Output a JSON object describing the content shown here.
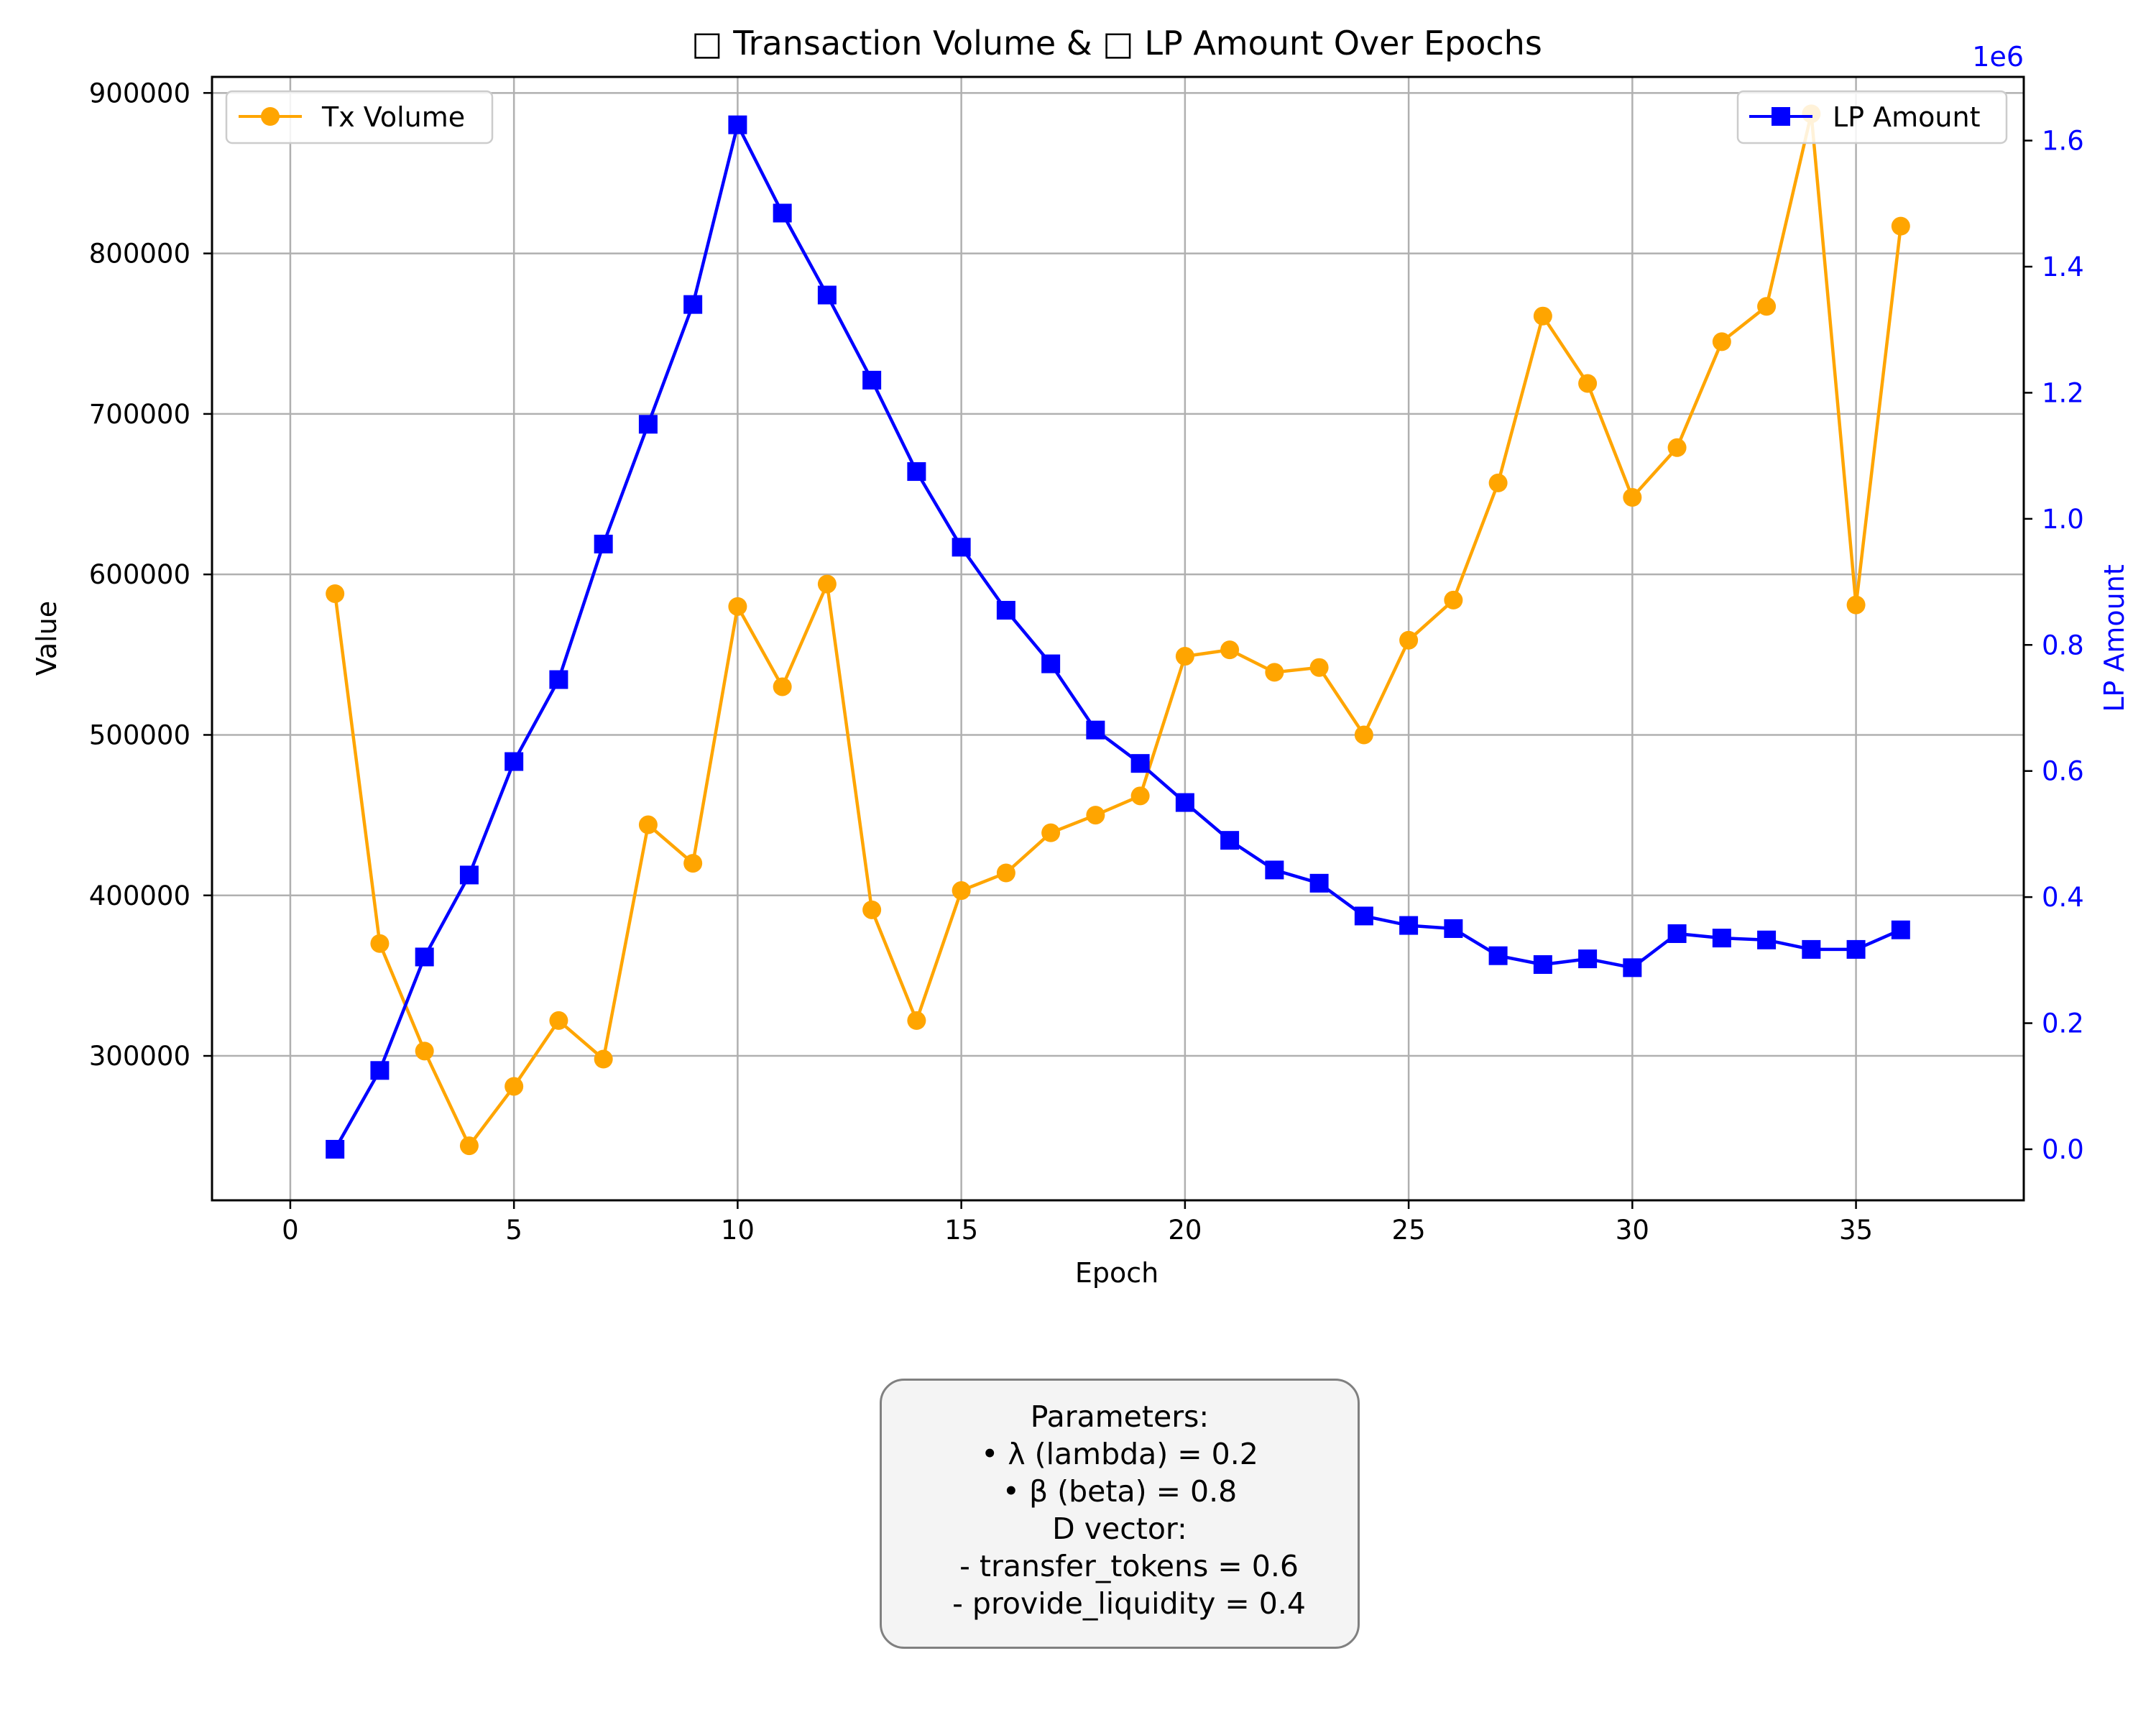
{
  "chart_data": {
    "type": "line",
    "title": "□ Transaction Volume & □ LP Amount Over Epochs",
    "xlabel": "Epoch",
    "ylabel_left": "Value",
    "ylabel_right": "LP Amount",
    "right_axis_offset_label": "1e6",
    "xlim": [
      -1.75,
      38.75
    ],
    "ylim_left": [
      210000,
      910000
    ],
    "ylim_right": [
      -0.081,
      1.701
    ],
    "x_ticks": [
      0,
      5,
      10,
      15,
      20,
      25,
      30,
      35
    ],
    "y_ticks_left": [
      300000,
      400000,
      500000,
      600000,
      700000,
      800000,
      900000
    ],
    "y_ticks_right": [
      0.0,
      0.2,
      0.4,
      0.6,
      0.8,
      1.0,
      1.2,
      1.4,
      1.6
    ],
    "grid": true,
    "x": [
      1,
      2,
      3,
      4,
      5,
      6,
      7,
      8,
      9,
      10,
      11,
      12,
      13,
      14,
      15,
      16,
      17,
      18,
      19,
      20,
      21,
      22,
      23,
      24,
      25,
      26,
      27,
      28,
      29,
      30,
      31,
      32,
      33,
      34,
      35,
      36
    ],
    "series": [
      {
        "name": "Tx Volume",
        "axis": "left",
        "color": "#ffa500",
        "marker": "circle",
        "legend_position": "upper-left",
        "values": [
          588000,
          370000,
          303000,
          244000,
          281000,
          322000,
          298000,
          444000,
          420000,
          580000,
          530000,
          594000,
          391000,
          322000,
          403000,
          414000,
          439000,
          450000,
          462000,
          549000,
          553000,
          539000,
          542000,
          500000,
          559000,
          584000,
          657000,
          761000,
          719000,
          648000,
          679000,
          745000,
          767000,
          887000,
          581000,
          817000
        ]
      },
      {
        "name": "LP Amount",
        "axis": "right",
        "color": "#0000ff",
        "marker": "square",
        "legend_position": "upper-right",
        "values": [
          0.0,
          0.125,
          0.305,
          0.435,
          0.615,
          0.745,
          0.96,
          1.15,
          1.34,
          1.625,
          1.485,
          1.355,
          1.22,
          1.075,
          0.955,
          0.855,
          0.77,
          0.665,
          0.612,
          0.55,
          0.49,
          0.443,
          0.422,
          0.37,
          0.355,
          0.35,
          0.307,
          0.293,
          0.302,
          0.288,
          0.342,
          0.335,
          0.332,
          0.317,
          0.317,
          0.348
        ]
      }
    ]
  },
  "parameters_box": {
    "lines": [
      "Parameters:",
      "• λ (lambda) = 0.2",
      "• β (beta) = 0.8",
      "D vector:",
      "  - transfer_tokens = 0.6",
      "  - provide_liquidity = 0.4"
    ]
  }
}
